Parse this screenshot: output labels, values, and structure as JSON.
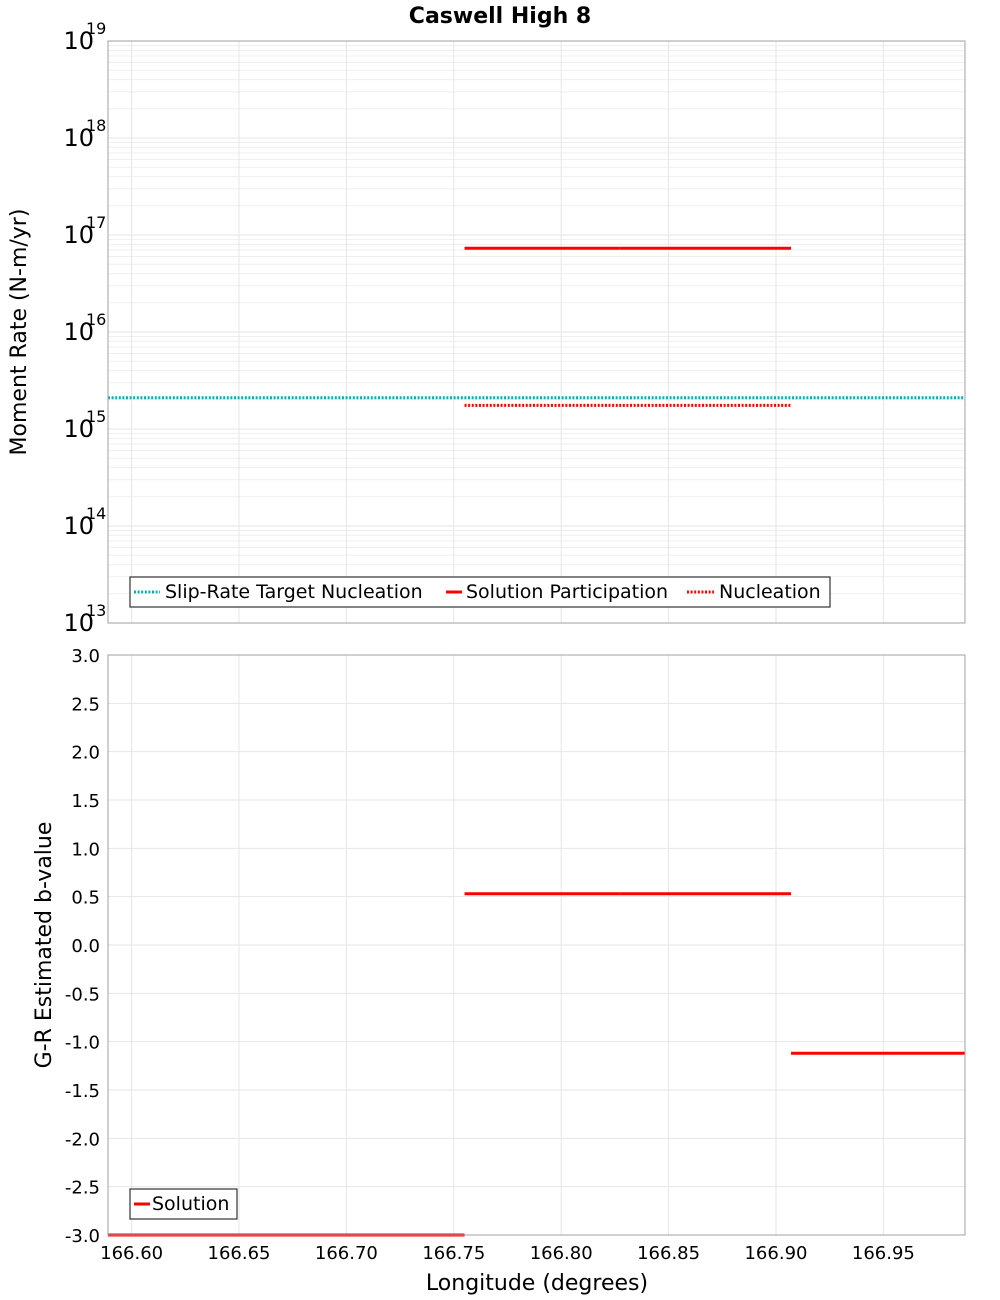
{
  "chart_data": [
    {
      "type": "line",
      "title": "Caswell High 8",
      "ylabel": "Moment Rate (N-m/yr)",
      "xlabel": "",
      "yscale": "log",
      "ylim": [
        10000000000000.0,
        1e+19
      ],
      "xlim": [
        166.589,
        166.988
      ],
      "y_ticks": [
        {
          "base": "10",
          "exp": "13"
        },
        {
          "base": "10",
          "exp": "14"
        },
        {
          "base": "10",
          "exp": "15"
        },
        {
          "base": "10",
          "exp": "16"
        },
        {
          "base": "10",
          "exp": "17"
        },
        {
          "base": "10",
          "exp": "18"
        },
        {
          "base": "10",
          "exp": "19"
        }
      ],
      "grid": true,
      "legend_position": "bottom-left",
      "series": [
        {
          "name": "Slip-Rate Target Nucleation",
          "color": "#00b2b2",
          "style": "dotted",
          "segments": [
            [
              166.589,
              166.988,
              2100000000000000.0
            ]
          ]
        },
        {
          "name": "Solution Participation",
          "color": "#ff0000",
          "style": "solid",
          "segments": [
            [
              166.755,
              166.827,
              7.3e+16
            ],
            [
              166.827,
              166.907,
              7.3e+16
            ]
          ]
        },
        {
          "name": "Nucleation",
          "color": "#ff0000",
          "style": "dotted",
          "segments": [
            [
              166.755,
              166.827,
              1750000000000000.0
            ],
            [
              166.827,
              166.907,
              1750000000000000.0
            ]
          ]
        }
      ]
    },
    {
      "type": "line",
      "title": "",
      "ylabel": "G-R Estimated b-value",
      "xlabel": "Longitude (degrees)",
      "ylim": [
        -3.0,
        3.0
      ],
      "xlim": [
        166.589,
        166.988
      ],
      "y_ticks": [
        "-3.0",
        "-2.5",
        "-2.0",
        "-1.5",
        "-1.0",
        "-0.5",
        "0.0",
        "0.5",
        "1.0",
        "1.5",
        "2.0",
        "2.5",
        "3.0"
      ],
      "x_ticks": [
        "166.60",
        "166.65",
        "166.70",
        "166.75",
        "166.80",
        "166.85",
        "166.90",
        "166.95"
      ],
      "grid": true,
      "legend_position": "bottom-left",
      "series": [
        {
          "name": "Solution",
          "color": "#ff0000",
          "style": "solid",
          "segments": [
            [
              166.589,
              166.677,
              -3.0
            ],
            [
              166.677,
              166.755,
              -3.0
            ],
            [
              166.755,
              166.827,
              0.53
            ],
            [
              166.827,
              166.907,
              0.53
            ],
            [
              166.907,
              166.988,
              -1.12
            ]
          ]
        }
      ]
    }
  ]
}
